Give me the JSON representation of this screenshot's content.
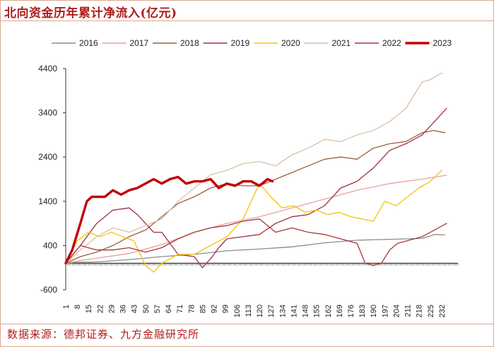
{
  "header": {
    "title": "北向资金历年累计净流入(亿元)"
  },
  "footer": {
    "source": "数据来源：德邦证券、九方金融研究所"
  },
  "chart_data": {
    "type": "line",
    "title": "北向资金历年累计净流入(亿元)",
    "xlabel": "",
    "ylabel": "",
    "ylim": [
      -600,
      4400
    ],
    "yticks": [
      -600,
      400,
      1400,
      2400,
      3400,
      4400
    ],
    "xlim": [
      1,
      242
    ],
    "xticks": [
      1,
      8,
      15,
      22,
      29,
      36,
      43,
      50,
      57,
      64,
      71,
      78,
      85,
      92,
      99,
      106,
      113,
      120,
      127,
      134,
      141,
      148,
      155,
      162,
      169,
      176,
      183,
      190,
      197,
      204,
      211,
      218,
      225,
      232
    ],
    "grid": false,
    "legend_position": "top",
    "series": [
      {
        "name": "2016",
        "color": "#8c8c8c",
        "width": 1.3,
        "x": [
          1,
          8,
          20,
          40,
          60,
          80,
          100,
          120,
          140,
          160,
          180,
          200,
          220,
          228,
          234
        ],
        "y": [
          0,
          20,
          30,
          80,
          150,
          200,
          280,
          320,
          370,
          460,
          520,
          540,
          560,
          650,
          640
        ]
      },
      {
        "name": "2017",
        "color": "#e8a0a0",
        "width": 1.3,
        "x": [
          1,
          10,
          25,
          40,
          60,
          80,
          100,
          120,
          140,
          160,
          180,
          200,
          220,
          235
        ],
        "y": [
          0,
          60,
          140,
          220,
          420,
          700,
          900,
          1050,
          1250,
          1450,
          1650,
          1800,
          1900,
          1990
        ]
      },
      {
        "name": "2018",
        "color": "#9b6040",
        "width": 1.3,
        "x": [
          1,
          10,
          20,
          30,
          40,
          50,
          60,
          70,
          80,
          90,
          100,
          110,
          120,
          130,
          140,
          150,
          160,
          170,
          180,
          190,
          200,
          210,
          220,
          227,
          234
        ],
        "y": [
          0,
          150,
          250,
          400,
          600,
          750,
          1050,
          1350,
          1500,
          1700,
          1800,
          1750,
          1750,
          1900,
          2050,
          2200,
          2350,
          2400,
          2350,
          2600,
          2700,
          2750,
          2950,
          3000,
          2950
        ]
      },
      {
        "name": "2019",
        "color": "#a03040",
        "width": 1.3,
        "x": [
          1,
          10,
          20,
          30,
          40,
          45,
          50,
          55,
          60,
          70,
          80,
          85,
          90,
          95,
          100,
          110,
          120,
          130,
          140,
          150,
          160,
          170,
          180,
          190,
          200,
          210,
          220,
          230,
          235
        ],
        "y": [
          0,
          400,
          900,
          1200,
          1250,
          1100,
          900,
          700,
          700,
          200,
          150,
          -100,
          100,
          350,
          550,
          600,
          650,
          900,
          1050,
          1100,
          1300,
          1700,
          1850,
          2150,
          2550,
          2700,
          2900,
          3300,
          3500
        ]
      },
      {
        "name": "2020",
        "color": "#f5c518",
        "width": 1.4,
        "x": [
          1,
          8,
          15,
          22,
          29,
          36,
          43,
          50,
          55,
          60,
          65,
          70,
          80,
          90,
          100,
          110,
          115,
          120,
          127,
          134,
          141,
          148,
          155,
          162,
          169,
          176,
          183,
          190,
          197,
          204,
          211,
          218,
          225,
          232
        ],
        "y": [
          0,
          500,
          700,
          600,
          700,
          600,
          500,
          -50,
          -200,
          0,
          100,
          200,
          200,
          400,
          600,
          1000,
          1400,
          1800,
          1500,
          1250,
          1300,
          1150,
          1200,
          1100,
          1150,
          1050,
          1000,
          950,
          1400,
          1300,
          1500,
          1700,
          1850,
          2100
        ]
      },
      {
        "name": "2021",
        "color": "#d9c0a8",
        "width": 1.3,
        "x": [
          1,
          10,
          20,
          30,
          40,
          50,
          60,
          70,
          80,
          90,
          100,
          110,
          120,
          130,
          140,
          150,
          160,
          170,
          180,
          190,
          200,
          210,
          215,
          220,
          225,
          232
        ],
        "y": [
          0,
          300,
          600,
          800,
          700,
          850,
          1000,
          1400,
          1700,
          2000,
          2100,
          2250,
          2300,
          2200,
          2450,
          2600,
          2800,
          2750,
          2900,
          3000,
          3200,
          3500,
          3800,
          4100,
          4150,
          4300
        ]
      },
      {
        "name": "2022",
        "color": "#a83838",
        "width": 1.3,
        "x": [
          1,
          10,
          20,
          30,
          40,
          50,
          60,
          70,
          80,
          90,
          100,
          110,
          120,
          130,
          140,
          150,
          160,
          170,
          180,
          185,
          190,
          195,
          200,
          205,
          210,
          220,
          230,
          235
        ],
        "y": [
          0,
          400,
          300,
          300,
          350,
          250,
          350,
          550,
          700,
          800,
          850,
          950,
          1000,
          700,
          800,
          700,
          650,
          550,
          450,
          0,
          -50,
          0,
          300,
          450,
          500,
          600,
          800,
          900
        ]
      },
      {
        "name": "2023",
        "color": "#c00000",
        "width": 3.4,
        "x": [
          1,
          5,
          10,
          14,
          17,
          20,
          25,
          30,
          35,
          40,
          45,
          50,
          55,
          60,
          65,
          70,
          75,
          80,
          85,
          90,
          95,
          100,
          105,
          110,
          115,
          120,
          125,
          128
        ],
        "y": [
          0,
          300,
          900,
          1400,
          1500,
          1500,
          1500,
          1650,
          1550,
          1650,
          1700,
          1800,
          1900,
          1800,
          1900,
          1950,
          1800,
          1850,
          1850,
          1900,
          1700,
          1800,
          1750,
          1850,
          1850,
          1750,
          1900,
          1850
        ]
      }
    ]
  }
}
